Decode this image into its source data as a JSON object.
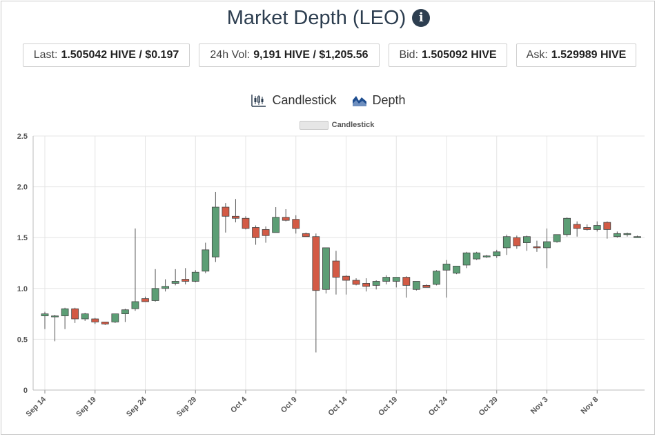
{
  "header": {
    "title": "Market Depth (LEO)",
    "info_icon": "info-icon"
  },
  "stats": [
    {
      "label": "Last:",
      "value": "1.505042 HIVE / $0.197"
    },
    {
      "label": "24h Vol:",
      "value": "9,191 HIVE / $1,205.56"
    },
    {
      "label": "Bid:",
      "value": "1.505092 HIVE"
    },
    {
      "label": "Ask:",
      "value": "1.529989 HIVE"
    }
  ],
  "tabs": [
    {
      "label": "Candlestick",
      "icon": "candlestick-icon"
    },
    {
      "label": "Depth",
      "icon": "depth-chart-icon"
    }
  ],
  "colors": {
    "up": "#5c9e75",
    "down": "#d35a45",
    "grid": "#e4e4e4",
    "title": "#2d3e50"
  },
  "chart_data": {
    "type": "candlestick",
    "legend": [
      "Candlestick"
    ],
    "legend_position": "top",
    "grid": true,
    "ylim": [
      0,
      2.5
    ],
    "y_ticks": [
      "0",
      "0.5",
      "1.0",
      "1.5",
      "2.0",
      "2.5"
    ],
    "x_tick_labels": [
      "Sep 14",
      "Sep 19",
      "Sep 24",
      "Sep 29",
      "Oct 4",
      "Oct 9",
      "Oct 14",
      "Oct 19",
      "Oct 24",
      "Oct 29",
      "Nov 3",
      "Nov 8"
    ],
    "candles": [
      {
        "date": "Sep 14",
        "open": 0.73,
        "high": 0.77,
        "low": 0.6,
        "close": 0.75
      },
      {
        "date": "Sep 15",
        "open": 0.73,
        "high": 0.74,
        "low": 0.48,
        "close": 0.73
      },
      {
        "date": "Sep 16",
        "open": 0.73,
        "high": 0.81,
        "low": 0.6,
        "close": 0.8
      },
      {
        "date": "Sep 17",
        "open": 0.8,
        "high": 0.81,
        "low": 0.66,
        "close": 0.7
      },
      {
        "date": "Sep 18",
        "open": 0.7,
        "high": 0.76,
        "low": 0.68,
        "close": 0.75
      },
      {
        "date": "Sep 19",
        "open": 0.7,
        "high": 0.71,
        "low": 0.65,
        "close": 0.67
      },
      {
        "date": "Sep 20",
        "open": 0.67,
        "high": 0.67,
        "low": 0.64,
        "close": 0.65
      },
      {
        "date": "Sep 21",
        "open": 0.67,
        "high": 0.75,
        "low": 0.66,
        "close": 0.75
      },
      {
        "date": "Sep 22",
        "open": 0.75,
        "high": 0.8,
        "low": 0.67,
        "close": 0.79
      },
      {
        "date": "Sep 23",
        "open": 0.8,
        "high": 1.59,
        "low": 0.78,
        "close": 0.87
      },
      {
        "date": "Sep 24",
        "open": 0.9,
        "high": 0.92,
        "low": 0.87,
        "close": 0.87
      },
      {
        "date": "Sep 25",
        "open": 0.88,
        "high": 1.19,
        "low": 0.87,
        "close": 1.0
      },
      {
        "date": "Sep 26",
        "open": 1.0,
        "high": 1.09,
        "low": 0.97,
        "close": 1.02
      },
      {
        "date": "Sep 27",
        "open": 1.05,
        "high": 1.19,
        "low": 1.03,
        "close": 1.07
      },
      {
        "date": "Sep 28",
        "open": 1.09,
        "high": 1.2,
        "low": 1.04,
        "close": 1.07
      },
      {
        "date": "Sep 29",
        "open": 1.07,
        "high": 1.18,
        "low": 1.06,
        "close": 1.16
      },
      {
        "date": "Sep 30",
        "open": 1.17,
        "high": 1.45,
        "low": 1.15,
        "close": 1.38
      },
      {
        "date": "Oct 1",
        "open": 1.31,
        "high": 1.95,
        "low": 1.26,
        "close": 1.8
      },
      {
        "date": "Oct 2",
        "open": 1.8,
        "high": 1.84,
        "low": 1.55,
        "close": 1.71
      },
      {
        "date": "Oct 3",
        "open": 1.71,
        "high": 1.88,
        "low": 1.65,
        "close": 1.69
      },
      {
        "date": "Oct 4",
        "open": 1.69,
        "high": 1.71,
        "low": 1.58,
        "close": 1.59
      },
      {
        "date": "Oct 5",
        "open": 1.6,
        "high": 1.62,
        "low": 1.43,
        "close": 1.5
      },
      {
        "date": "Oct 6",
        "open": 1.58,
        "high": 1.61,
        "low": 1.45,
        "close": 1.52
      },
      {
        "date": "Oct 7",
        "open": 1.55,
        "high": 1.8,
        "low": 1.55,
        "close": 1.7
      },
      {
        "date": "Oct 8",
        "open": 1.7,
        "high": 1.78,
        "low": 1.66,
        "close": 1.67
      },
      {
        "date": "Oct 9",
        "open": 1.68,
        "high": 1.72,
        "low": 1.54,
        "close": 1.59
      },
      {
        "date": "Oct 10",
        "open": 1.54,
        "high": 1.55,
        "low": 1.51,
        "close": 1.51
      },
      {
        "date": "Oct 11",
        "open": 1.51,
        "high": 1.54,
        "low": 0.37,
        "close": 0.98
      },
      {
        "date": "Oct 12",
        "open": 0.99,
        "high": 1.4,
        "low": 0.95,
        "close": 1.4
      },
      {
        "date": "Oct 13",
        "open": 1.27,
        "high": 1.37,
        "low": 0.94,
        "close": 1.11
      },
      {
        "date": "Oct 14",
        "open": 1.12,
        "high": 1.13,
        "low": 0.94,
        "close": 1.08
      },
      {
        "date": "Oct 15",
        "open": 1.08,
        "high": 1.1,
        "low": 1.03,
        "close": 1.04
      },
      {
        "date": "Oct 16",
        "open": 1.05,
        "high": 1.1,
        "low": 0.97,
        "close": 1.02
      },
      {
        "date": "Oct 17",
        "open": 1.03,
        "high": 1.08,
        "low": 0.99,
        "close": 1.07
      },
      {
        "date": "Oct 18",
        "open": 1.07,
        "high": 1.13,
        "low": 1.04,
        "close": 1.11
      },
      {
        "date": "Oct 19",
        "open": 1.07,
        "high": 1.11,
        "low": 1.01,
        "close": 1.11
      },
      {
        "date": "Oct 20",
        "open": 1.11,
        "high": 1.12,
        "low": 0.91,
        "close": 1.03
      },
      {
        "date": "Oct 21",
        "open": 0.99,
        "high": 1.07,
        "low": 0.98,
        "close": 1.07
      },
      {
        "date": "Oct 22",
        "open": 1.03,
        "high": 1.04,
        "low": 1.01,
        "close": 1.01
      },
      {
        "date": "Oct 23",
        "open": 1.04,
        "high": 1.18,
        "low": 1.03,
        "close": 1.17
      },
      {
        "date": "Oct 24",
        "open": 1.18,
        "high": 1.28,
        "low": 0.91,
        "close": 1.24
      },
      {
        "date": "Oct 25",
        "open": 1.15,
        "high": 1.22,
        "low": 1.14,
        "close": 1.22
      },
      {
        "date": "Oct 26",
        "open": 1.23,
        "high": 1.36,
        "low": 1.2,
        "close": 1.35
      },
      {
        "date": "Oct 27",
        "open": 1.29,
        "high": 1.36,
        "low": 1.28,
        "close": 1.35
      },
      {
        "date": "Oct 28",
        "open": 1.31,
        "high": 1.33,
        "low": 1.3,
        "close": 1.32
      },
      {
        "date": "Oct 29",
        "open": 1.32,
        "high": 1.38,
        "low": 1.3,
        "close": 1.36
      },
      {
        "date": "Oct 30",
        "open": 1.4,
        "high": 1.53,
        "low": 1.33,
        "close": 1.51
      },
      {
        "date": "Oct 31",
        "open": 1.5,
        "high": 1.52,
        "low": 1.39,
        "close": 1.42
      },
      {
        "date": "Nov 1",
        "open": 1.45,
        "high": 1.52,
        "low": 1.37,
        "close": 1.51
      },
      {
        "date": "Nov 2",
        "open": 1.41,
        "high": 1.47,
        "low": 1.36,
        "close": 1.4
      },
      {
        "date": "Nov 3",
        "open": 1.4,
        "high": 1.59,
        "low": 1.2,
        "close": 1.46
      },
      {
        "date": "Nov 4",
        "open": 1.46,
        "high": 1.53,
        "low": 1.45,
        "close": 1.53
      },
      {
        "date": "Nov 5",
        "open": 1.53,
        "high": 1.7,
        "low": 1.51,
        "close": 1.69
      },
      {
        "date": "Nov 6",
        "open": 1.63,
        "high": 1.66,
        "low": 1.51,
        "close": 1.59
      },
      {
        "date": "Nov 7",
        "open": 1.6,
        "high": 1.63,
        "low": 1.57,
        "close": 1.58
      },
      {
        "date": "Nov 8",
        "open": 1.58,
        "high": 1.66,
        "low": 1.56,
        "close": 1.62
      },
      {
        "date": "Nov 9",
        "open": 1.65,
        "high": 1.66,
        "low": 1.49,
        "close": 1.58
      },
      {
        "date": "Nov 10",
        "open": 1.51,
        "high": 1.56,
        "low": 1.5,
        "close": 1.54
      },
      {
        "date": "Nov 11",
        "open": 1.53,
        "high": 1.55,
        "low": 1.51,
        "close": 1.54
      },
      {
        "date": "Nov 12",
        "open": 1.51,
        "high": 1.52,
        "low": 1.5,
        "close": 1.51
      }
    ]
  }
}
